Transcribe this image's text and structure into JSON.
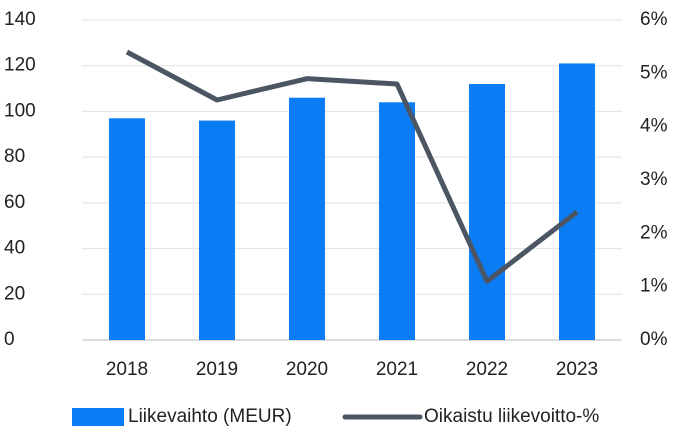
{
  "chart_data": {
    "type": "bar-line",
    "categories": [
      "2018",
      "2019",
      "2020",
      "2021",
      "2022",
      "2023"
    ],
    "series": [
      {
        "name": "Liikevaihto (MEUR)",
        "type": "bar",
        "color": "#0b7df4",
        "values": [
          97,
          96,
          106,
          104,
          112,
          121
        ]
      },
      {
        "name": "Oikaistu liikevoitto-%",
        "type": "line",
        "color": "#4c5563",
        "axis": "y2",
        "values": [
          5.4,
          4.5,
          4.9,
          4.8,
          1.1,
          2.4
        ]
      }
    ],
    "ylim": [
      0,
      140
    ],
    "yticks": [
      0,
      20,
      40,
      60,
      80,
      100,
      120,
      140
    ],
    "y2lim": [
      0,
      6
    ],
    "y2ticks": [
      {
        "value": 0,
        "label": "0%"
      },
      {
        "value": 1,
        "label": "1%"
      },
      {
        "value": 2,
        "label": "2%"
      },
      {
        "value": 3,
        "label": "3%"
      },
      {
        "value": 4,
        "label": "4%"
      },
      {
        "value": 5,
        "label": "5%"
      },
      {
        "value": 6,
        "label": "6%"
      }
    ],
    "grid": true,
    "legend": "bottom"
  }
}
